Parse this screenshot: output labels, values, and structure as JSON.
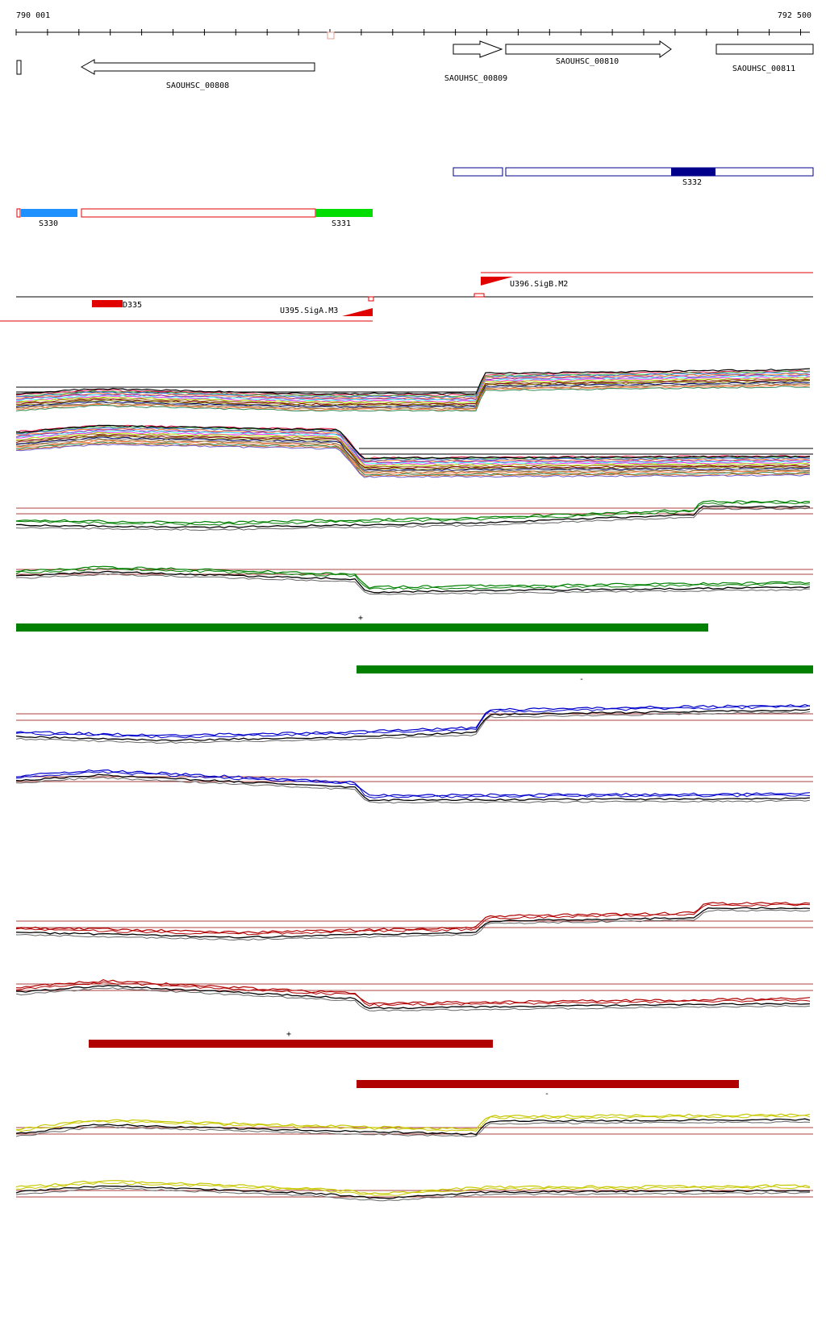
{
  "coords": {
    "start": "790 001",
    "end": "792 500"
  },
  "genes": [
    {
      "id": "SAOUHSC_00808",
      "strand": "-"
    },
    {
      "id": "SAOUHSC_00809",
      "strand": "+"
    },
    {
      "id": "SAOUHSC_00810",
      "strand": "+"
    },
    {
      "id": "SAOUHSC_00811",
      "strand": "+"
    }
  ],
  "segments": [
    {
      "id": "S330",
      "color": "#1e90ff"
    },
    {
      "id": "S331",
      "color": "#00dd00"
    },
    {
      "id": "S332",
      "color": "#00008b"
    }
  ],
  "features": [
    {
      "id": "D335",
      "color": "#e00000"
    },
    {
      "id": "U395.SigA.M3",
      "color": "#e00000"
    },
    {
      "id": "U396.SigB.M2",
      "color": "#e00000"
    }
  ],
  "strand_labels": {
    "plus": "+",
    "minus": "-"
  },
  "colors": {
    "green_track": "#008000",
    "blue_track": "#0000cc",
    "red_track": "#b00000",
    "yellow_track": "#c8c800",
    "reference_line": "#8b0000"
  }
}
